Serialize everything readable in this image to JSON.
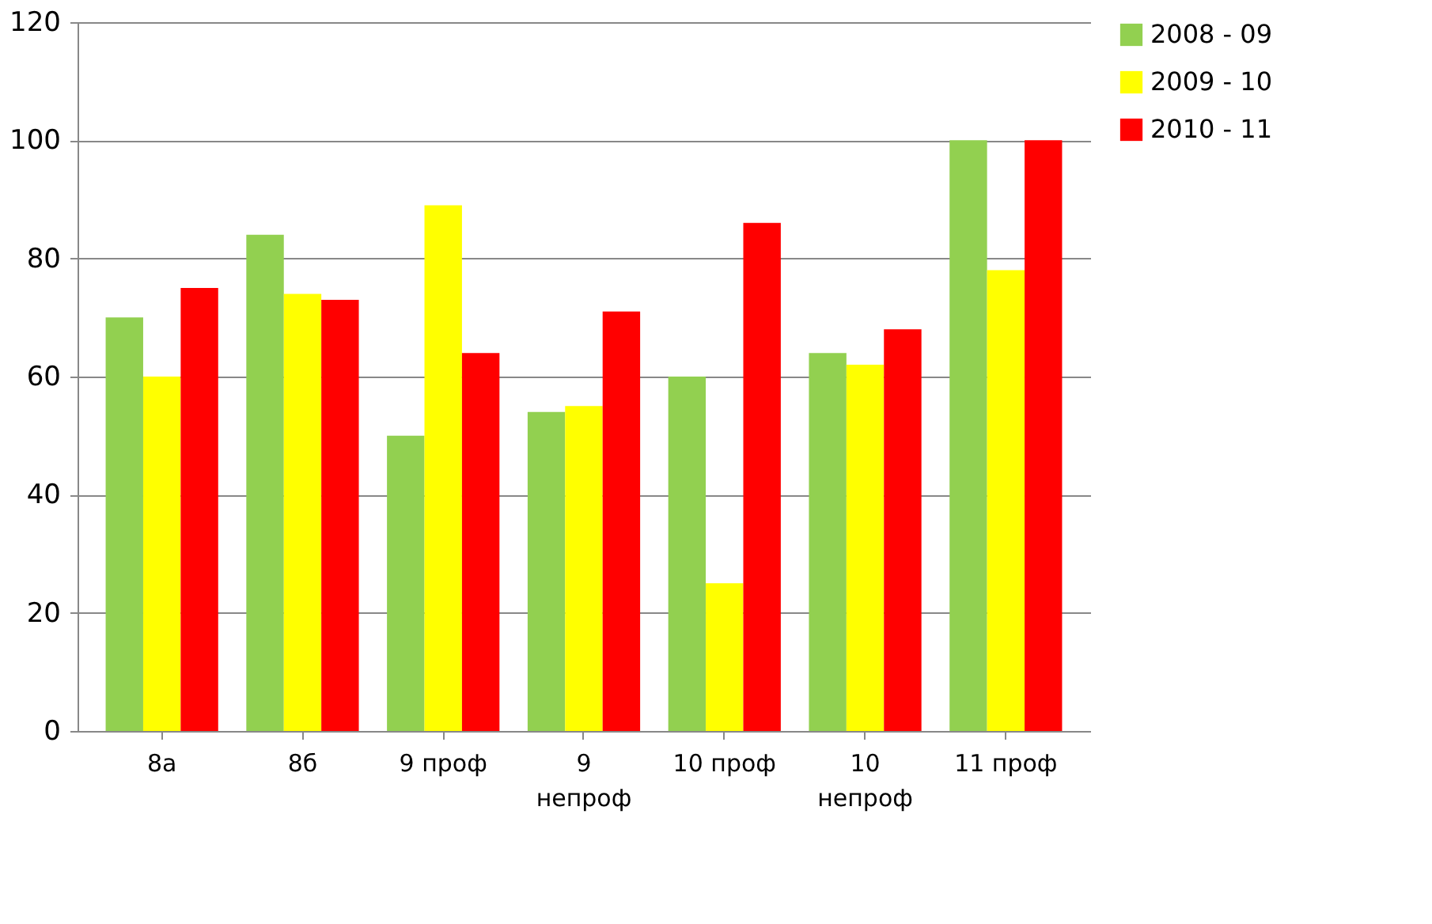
{
  "chart_data": {
    "type": "bar",
    "categories": [
      "8а",
      "8б",
      "9 проф",
      "9 непроф",
      "10 проф",
      "10 непроф",
      "11 проф"
    ],
    "series": [
      {
        "name": "2008 - 09",
        "color": "#92d050",
        "values": [
          70,
          84,
          50,
          54,
          60,
          64,
          100
        ]
      },
      {
        "name": "2009 - 10",
        "color": "#ffff00",
        "values": [
          60,
          74,
          89,
          55,
          25,
          62,
          78
        ]
      },
      {
        "name": "2010 - 11",
        "color": "#ff0000",
        "values": [
          75,
          73,
          64,
          71,
          86,
          68,
          100
        ]
      }
    ],
    "ylim": [
      0,
      120
    ],
    "yticks": [
      0,
      20,
      40,
      60,
      80,
      100,
      120
    ],
    "grid": "y",
    "legend": "right"
  }
}
